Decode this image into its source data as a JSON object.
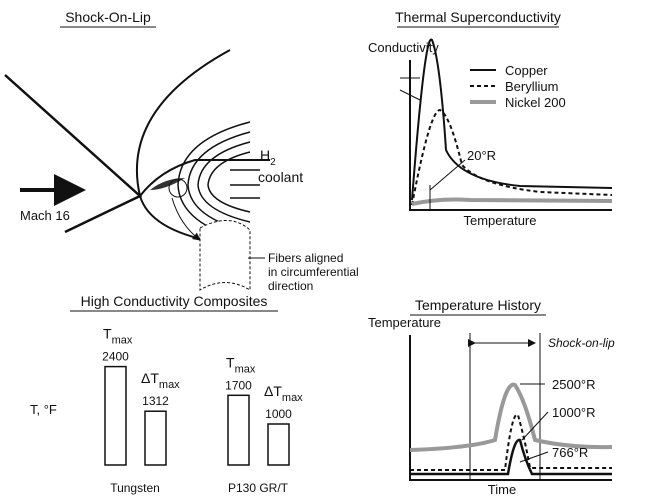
{
  "shock_on_lip": {
    "title": "Shock-On-Lip",
    "mach": "Mach 16",
    "h2": "H",
    "h2_sub": "2",
    "coolant": "coolant",
    "fibers": [
      "Fibers aligned",
      "in circumferential",
      "direction"
    ]
  },
  "thermal": {
    "title": "Thermal Superconductivity",
    "y_label": "Conductivity",
    "x_label": "Temperature",
    "legend": [
      "Copper",
      "Beryllium",
      "Nickel 200"
    ],
    "annotation": "20°R"
  },
  "composites": {
    "title": "High Conductivity Composites",
    "y_label": "T, °F",
    "groups": [
      {
        "name": "Tungsten",
        "bars": [
          {
            "label": "T",
            "sub": "max",
            "value": 2400
          },
          {
            "label": "ΔT",
            "sub": "max",
            "value": 1312
          }
        ]
      },
      {
        "name": "P130 GR/T",
        "bars": [
          {
            "label": "T",
            "sub": "max",
            "value": 1700
          },
          {
            "label": "ΔT",
            "sub": "max",
            "value": 1000
          }
        ]
      }
    ]
  },
  "history": {
    "title": "Temperature History",
    "y_label": "Temperature",
    "x_label": "Time",
    "annotation": "Shock-on-lip",
    "levels": [
      "2500°R",
      "1000°R",
      "766°R"
    ]
  }
}
